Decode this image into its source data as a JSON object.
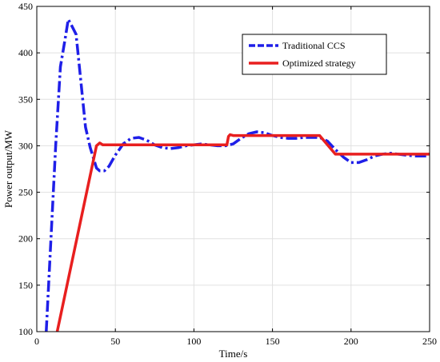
{
  "chart_data": {
    "type": "line",
    "xlabel": "Time/s",
    "ylabel": "Power output/MW",
    "xlim": [
      0,
      250
    ],
    "ylim": [
      100,
      450
    ],
    "xticks": [
      0,
      50,
      100,
      150,
      200,
      250
    ],
    "yticks": [
      100,
      150,
      200,
      250,
      300,
      350,
      400,
      450
    ],
    "grid": true,
    "legend_position": "top-right",
    "series": [
      {
        "name": "Traditional CCS",
        "color": "#1f1fe8",
        "style": "dashdot",
        "x": [
          6,
          9,
          12,
          15,
          18,
          20,
          22,
          25,
          28,
          31,
          34,
          36,
          38,
          40,
          43,
          46,
          50,
          55,
          60,
          65,
          70,
          75,
          80,
          85,
          90,
          95,
          100,
          105,
          110,
          115,
          120,
          125,
          130,
          135,
          140,
          145,
          150,
          155,
          160,
          165,
          170,
          175,
          180,
          185,
          190,
          195,
          200,
          205,
          210,
          215,
          220,
          225,
          230,
          235,
          240,
          245,
          250
        ],
        "y": [
          100,
          200,
          300,
          385,
          415,
          436,
          430,
          420,
          370,
          320,
          298,
          287,
          276,
          273,
          273,
          278,
          290,
          302,
          308,
          309,
          306,
          301,
          298,
          297,
          298,
          300,
          301,
          302,
          301,
          300,
          300,
          302,
          308,
          313,
          315,
          314,
          311,
          309,
          308,
          308,
          309,
          309,
          309,
          305,
          296,
          288,
          282,
          282,
          285,
          289,
          291,
          292,
          291,
          290,
          289,
          289,
          289
        ]
      },
      {
        "name": "Optimized strategy",
        "color": "#e81f1f",
        "style": "solid",
        "x": [
          13,
          38,
          40,
          42,
          44,
          121,
          122,
          123,
          125,
          180,
          190,
          250
        ],
        "y": [
          100,
          300,
          303,
          301,
          301,
          301,
          310,
          312,
          311,
          311,
          291,
          291
        ]
      }
    ]
  }
}
